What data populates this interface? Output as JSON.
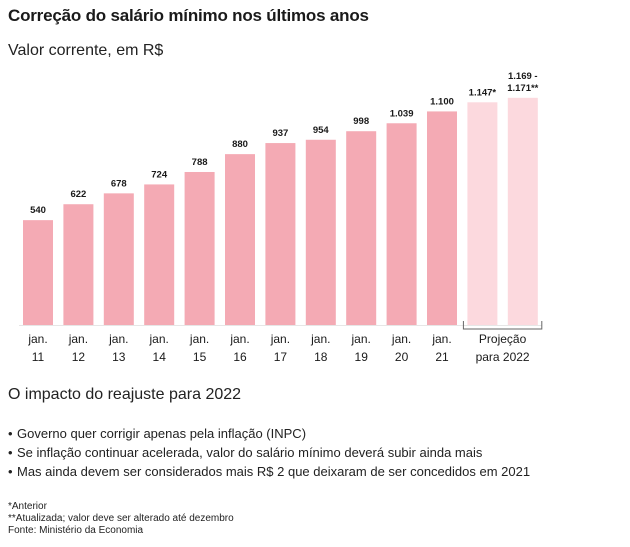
{
  "header": {
    "title": "Correção do salário mínimo nos últimos anos",
    "subtitle": "Valor corrente, em R$"
  },
  "chart_data": {
    "type": "bar",
    "categories": [
      [
        "jan.",
        "11"
      ],
      [
        "jan.",
        "12"
      ],
      [
        "jan.",
        "13"
      ],
      [
        "jan.",
        "14"
      ],
      [
        "jan.",
        "15"
      ],
      [
        "jan.",
        "16"
      ],
      [
        "jan.",
        "17"
      ],
      [
        "jan.",
        "18"
      ],
      [
        "jan.",
        "19"
      ],
      [
        "jan.",
        "20"
      ],
      [
        "jan.",
        "21"
      ],
      [
        "",
        ""
      ],
      [
        "",
        ""
      ]
    ],
    "values": [
      540,
      622,
      678,
      724,
      788,
      880,
      937,
      954,
      998,
      1039,
      1100,
      1147,
      1170
    ],
    "value_labels": [
      [
        "540"
      ],
      [
        "622"
      ],
      [
        "678"
      ],
      [
        "724"
      ],
      [
        "788"
      ],
      [
        "880"
      ],
      [
        "937"
      ],
      [
        "954"
      ],
      [
        "998"
      ],
      [
        "1.039"
      ],
      [
        "1.100"
      ],
      [
        "1.147*"
      ],
      [
        "1.169 -",
        "1.171**"
      ]
    ],
    "projection_start_index": 11,
    "projection_label": [
      "Projeção",
      "para 2022"
    ],
    "colors": {
      "bar": "#f4aab4",
      "projection": "#fcd9de",
      "baseline": "#e6e6e6",
      "bracket": "#666666"
    },
    "ylim": [
      0,
      1200
    ]
  },
  "impact": {
    "title": "O impacto do reajuste para 2022",
    "bullets": [
      "Governo quer corrigir apenas pela inflação (INPC)",
      "Se inflação continuar acelerada, valor do salário mínimo deverá subir ainda mais",
      "Mas ainda devem ser considerados mais R$ 2 que deixaram de ser concedidos em 2021"
    ]
  },
  "notes": {
    "anterior": "*Anterior",
    "atualizada": "**Atualizada; valor deve ser alterado até dezembro",
    "fonte": "Fonte: Ministério da Economia"
  }
}
